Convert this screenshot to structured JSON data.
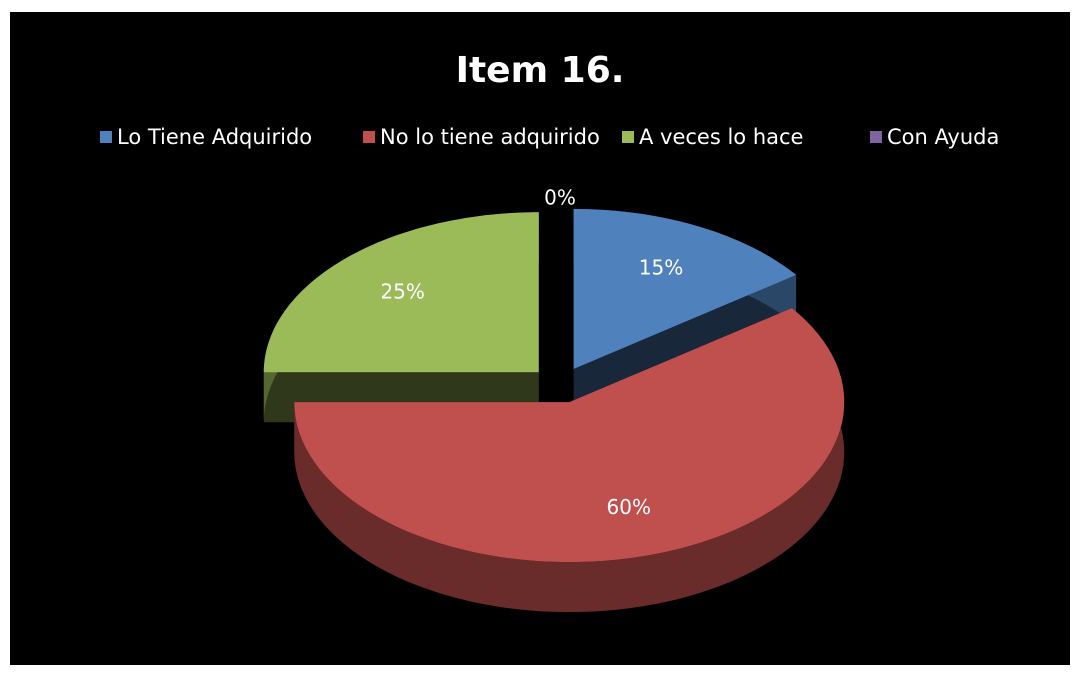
{
  "chart_data": {
    "type": "pie3d",
    "title": "Item 16.",
    "categories": [
      "Lo Tiene Adquirido",
      "No lo tiene adquirido",
      "A veces lo hace",
      "Con Ayuda"
    ],
    "values": [
      15,
      60,
      25,
      0
    ],
    "value_labels": [
      "15%",
      "60%",
      "25%",
      "0%"
    ],
    "colors": [
      "#4f81bd",
      "#c0504d",
      "#9bbb59",
      "#8064a2"
    ],
    "legend": "top"
  }
}
